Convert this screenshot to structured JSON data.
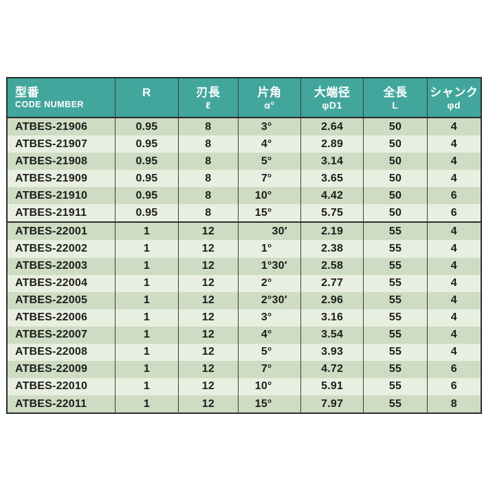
{
  "colors": {
    "header_bg": "#42a69c",
    "header_text": "#ffffff",
    "row_dark": "#cddcc2",
    "row_light": "#e9efe0",
    "border": "#2b2b2b",
    "cell_text": "#1c1c1c",
    "page_bg": "#ffffff"
  },
  "table": {
    "columns": [
      {
        "key": "code",
        "name": "header-code-number",
        "line1": "型番",
        "line2": "CODE NUMBER",
        "width": 22.7,
        "align": "left"
      },
      {
        "key": "r",
        "name": "header-r",
        "line1": "R",
        "line2": "",
        "width": 13.3,
        "align": "center"
      },
      {
        "key": "flute",
        "name": "header-flute-length",
        "line1": "刃長",
        "line2": "ℓ",
        "width": 12.7,
        "align": "center"
      },
      {
        "key": "angle",
        "name": "header-half-angle",
        "line1": "片角",
        "line2": "α°",
        "width": 13.2,
        "align": "center"
      },
      {
        "key": "dia",
        "name": "header-large-end-dia",
        "line1": "大端径",
        "line2": "φD1",
        "width": 13.3,
        "align": "center"
      },
      {
        "key": "length",
        "name": "header-overall-length",
        "line1": "全長",
        "line2": "L",
        "width": 13.4,
        "align": "center"
      },
      {
        "key": "shank",
        "name": "header-shank-dia",
        "line1": "シャンク",
        "line2": "φd",
        "width": 11.4,
        "align": "center"
      }
    ],
    "groups": [
      {
        "rows": [
          {
            "code": "ATBES-21906",
            "r": "0.95",
            "flute": "8",
            "angle_deg": "3°",
            "angle_min": "",
            "dia": "2.64",
            "length": "50",
            "shank": "4"
          },
          {
            "code": "ATBES-21907",
            "r": "0.95",
            "flute": "8",
            "angle_deg": "4°",
            "angle_min": "",
            "dia": "2.89",
            "length": "50",
            "shank": "4"
          },
          {
            "code": "ATBES-21908",
            "r": "0.95",
            "flute": "8",
            "angle_deg": "5°",
            "angle_min": "",
            "dia": "3.14",
            "length": "50",
            "shank": "4"
          },
          {
            "code": "ATBES-21909",
            "r": "0.95",
            "flute": "8",
            "angle_deg": "7°",
            "angle_min": "",
            "dia": "3.65",
            "length": "50",
            "shank": "4"
          },
          {
            "code": "ATBES-21910",
            "r": "0.95",
            "flute": "8",
            "angle_deg": "10°",
            "angle_min": "",
            "dia": "4.42",
            "length": "50",
            "shank": "6"
          },
          {
            "code": "ATBES-21911",
            "r": "0.95",
            "flute": "8",
            "angle_deg": "15°",
            "angle_min": "",
            "dia": "5.75",
            "length": "50",
            "shank": "6"
          }
        ]
      },
      {
        "rows": [
          {
            "code": "ATBES-22001",
            "r": "1",
            "flute": "12",
            "angle_deg": "",
            "angle_min": "30′",
            "dia": "2.19",
            "length": "55",
            "shank": "4"
          },
          {
            "code": "ATBES-22002",
            "r": "1",
            "flute": "12",
            "angle_deg": "1°",
            "angle_min": "",
            "dia": "2.38",
            "length": "55",
            "shank": "4"
          },
          {
            "code": "ATBES-22003",
            "r": "1",
            "flute": "12",
            "angle_deg": "1°",
            "angle_min": "30′",
            "dia": "2.58",
            "length": "55",
            "shank": "4"
          },
          {
            "code": "ATBES-22004",
            "r": "1",
            "flute": "12",
            "angle_deg": "2°",
            "angle_min": "",
            "dia": "2.77",
            "length": "55",
            "shank": "4"
          },
          {
            "code": "ATBES-22005",
            "r": "1",
            "flute": "12",
            "angle_deg": "2°",
            "angle_min": "30′",
            "dia": "2.96",
            "length": "55",
            "shank": "4"
          },
          {
            "code": "ATBES-22006",
            "r": "1",
            "flute": "12",
            "angle_deg": "3°",
            "angle_min": "",
            "dia": "3.16",
            "length": "55",
            "shank": "4"
          },
          {
            "code": "ATBES-22007",
            "r": "1",
            "flute": "12",
            "angle_deg": "4°",
            "angle_min": "",
            "dia": "3.54",
            "length": "55",
            "shank": "4"
          },
          {
            "code": "ATBES-22008",
            "r": "1",
            "flute": "12",
            "angle_deg": "5°",
            "angle_min": "",
            "dia": "3.93",
            "length": "55",
            "shank": "4"
          },
          {
            "code": "ATBES-22009",
            "r": "1",
            "flute": "12",
            "angle_deg": "7°",
            "angle_min": "",
            "dia": "4.72",
            "length": "55",
            "shank": "6"
          },
          {
            "code": "ATBES-22010",
            "r": "1",
            "flute": "12",
            "angle_deg": "10°",
            "angle_min": "",
            "dia": "5.91",
            "length": "55",
            "shank": "6"
          },
          {
            "code": "ATBES-22011",
            "r": "1",
            "flute": "12",
            "angle_deg": "15°",
            "angle_min": "",
            "dia": "7.97",
            "length": "55",
            "shank": "8"
          }
        ]
      }
    ]
  }
}
